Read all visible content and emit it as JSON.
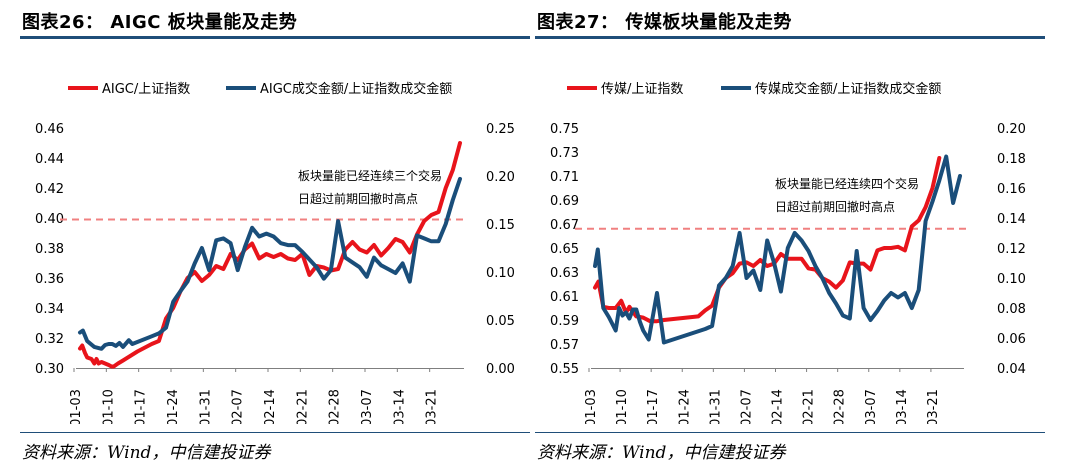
{
  "colors": {
    "red": "#e8141b",
    "navy": "#1a4e7a",
    "dash": "#f08080",
    "rule": "#1f4e79"
  },
  "charts": [
    {
      "title": "图表26： AIGC 板块量能及走势",
      "source": "资料来源：Wind，中信建投证券",
      "chart_data": {
        "type": "line",
        "legend": [
          "AIGC/上证指数",
          "AIGC成交金额/上证指数成交金额"
        ],
        "x_ticks": [
          "01-03",
          "01-10",
          "01-17",
          "01-24",
          "01-31",
          "02-07",
          "02-14",
          "02-21",
          "02-28",
          "03-07",
          "03-14",
          "03-21"
        ],
        "y_left_ticks": [
          "0.46",
          "0.44",
          "0.42",
          "0.40",
          "0.38",
          "0.36",
          "0.34",
          "0.32",
          "0.30"
        ],
        "y_left_range": [
          0.3,
          0.46
        ],
        "y_right_ticks": [
          "0.25",
          "0.20",
          "0.15",
          "0.10",
          "0.05",
          "0.00"
        ],
        "y_right_range": [
          0.0,
          0.25
        ],
        "reference_line_left": 0.399,
        "annotation": [
          "板块量能已经连续三个交易",
          "日超过前期回撤时高点"
        ],
        "series": [
          {
            "name": "AIGC/上证指数",
            "axis": "left",
            "color": "red",
            "points": [
              [
                0,
                0.313
              ],
              [
                0.3,
                0.315
              ],
              [
                0.7,
                0.31
              ],
              [
                1,
                0.307
              ],
              [
                1.6,
                0.306
              ],
              [
                2,
                0.303
              ],
              [
                2.3,
                0.306
              ],
              [
                2.6,
                0.303
              ],
              [
                3,
                0.304
              ],
              [
                3.5,
                0.303
              ],
              [
                4,
                0.302
              ],
              [
                4.4,
                0.301
              ],
              [
                4.7,
                0.301
              ],
              [
                5.3,
                0.303
              ],
              [
                6,
                0.305
              ],
              [
                8,
                0.311
              ],
              [
                10,
                0.316
              ],
              [
                11,
                0.318
              ],
              [
                12,
                0.333
              ],
              [
                13,
                0.34
              ],
              [
                14,
                0.351
              ],
              [
                15,
                0.36
              ],
              [
                16,
                0.364
              ],
              [
                17,
                0.358
              ],
              [
                18,
                0.362
              ],
              [
                19,
                0.368
              ],
              [
                20,
                0.366
              ],
              [
                21,
                0.376
              ],
              [
                22,
                0.372
              ],
              [
                23,
                0.379
              ],
              [
                24,
                0.383
              ],
              [
                25,
                0.373
              ],
              [
                26,
                0.376
              ],
              [
                27,
                0.374
              ],
              [
                28,
                0.376
              ],
              [
                29,
                0.373
              ],
              [
                30,
                0.372
              ],
              [
                31,
                0.376
              ],
              [
                32,
                0.362
              ],
              [
                33,
                0.368
              ],
              [
                34,
                0.367
              ],
              [
                35,
                0.365
              ],
              [
                36,
                0.366
              ],
              [
                37,
                0.379
              ],
              [
                38,
                0.384
              ],
              [
                39,
                0.379
              ],
              [
                40,
                0.377
              ],
              [
                41,
                0.382
              ],
              [
                42,
                0.375
              ],
              [
                43,
                0.38
              ],
              [
                44,
                0.386
              ],
              [
                45,
                0.384
              ],
              [
                46,
                0.377
              ],
              [
                47,
                0.389
              ],
              [
                48,
                0.398
              ],
              [
                49,
                0.402
              ],
              [
                50,
                0.404
              ],
              [
                51,
                0.42
              ],
              [
                52,
                0.432
              ],
              [
                53,
                0.45
              ]
            ]
          },
          {
            "name": "AIGC成交金额/上证指数成交金额",
            "axis": "right",
            "color": "navy",
            "points": [
              [
                0,
                0.037
              ],
              [
                0.4,
                0.039
              ],
              [
                1,
                0.028
              ],
              [
                2,
                0.022
              ],
              [
                3,
                0.02
              ],
              [
                3.5,
                0.024
              ],
              [
                4,
                0.025
              ],
              [
                4.5,
                0.025
              ],
              [
                5,
                0.023
              ],
              [
                5.5,
                0.026
              ],
              [
                6,
                0.022
              ],
              [
                6.8,
                0.029
              ],
              [
                7.3,
                0.025
              ],
              [
                10,
                0.033
              ],
              [
                11,
                0.036
              ],
              [
                12,
                0.042
              ],
              [
                13,
                0.069
              ],
              [
                14,
                0.08
              ],
              [
                15,
                0.09
              ],
              [
                16,
                0.109
              ],
              [
                17,
                0.125
              ],
              [
                18,
                0.102
              ],
              [
                19,
                0.133
              ],
              [
                20,
                0.135
              ],
              [
                21,
                0.13
              ],
              [
                22,
                0.102
              ],
              [
                23,
                0.126
              ],
              [
                24,
                0.146
              ],
              [
                25,
                0.137
              ],
              [
                26,
                0.14
              ],
              [
                27,
                0.137
              ],
              [
                28,
                0.13
              ],
              [
                29,
                0.128
              ],
              [
                30,
                0.128
              ],
              [
                31,
                0.121
              ],
              [
                32,
                0.113
              ],
              [
                33,
                0.105
              ],
              [
                34,
                0.093
              ],
              [
                35,
                0.102
              ],
              [
                36,
                0.153
              ],
              [
                37,
                0.115
              ],
              [
                38,
                0.11
              ],
              [
                39,
                0.105
              ],
              [
                40,
                0.095
              ],
              [
                41,
                0.115
              ],
              [
                42,
                0.107
              ],
              [
                43,
                0.103
              ],
              [
                44,
                0.099
              ],
              [
                45,
                0.109
              ],
              [
                46,
                0.09
              ],
              [
                47,
                0.138
              ],
              [
                48,
                0.135
              ],
              [
                49,
                0.132
              ],
              [
                50,
                0.132
              ],
              [
                51,
                0.15
              ],
              [
                52,
                0.175
              ],
              [
                53,
                0.197
              ]
            ]
          }
        ]
      }
    },
    {
      "title": "图表27： 传媒板块量能及走势",
      "source": "资料来源：Wind，中信建投证券",
      "chart_data": {
        "type": "line",
        "legend": [
          "传媒/上证指数",
          "传媒成交金额/上证指数成交金额"
        ],
        "x_ticks": [
          "01-03",
          "01-10",
          "01-17",
          "01-24",
          "01-31",
          "02-07",
          "02-14",
          "02-21",
          "02-28",
          "03-07",
          "03-14",
          "03-21"
        ],
        "y_left_ticks": [
          "0.75",
          "0.73",
          "0.71",
          "0.69",
          "0.67",
          "0.65",
          "0.63",
          "0.61",
          "0.59",
          "0.57",
          "0.55"
        ],
        "y_left_range": [
          0.55,
          0.75
        ],
        "y_right_ticks": [
          "0.20",
          "0.18",
          "0.16",
          "0.14",
          "0.12",
          "0.10",
          "0.08",
          "0.06",
          "0.04"
        ],
        "y_right_range": [
          0.04,
          0.2
        ],
        "reference_line_left": 0.666,
        "annotation": [
          "板块量能已经连续四个交易",
          "日超过前期回撤时高点"
        ],
        "series": [
          {
            "name": "传媒/上证指数",
            "axis": "left",
            "color": "red",
            "points": [
              [
                0,
                0.617
              ],
              [
                0.5,
                0.622
              ],
              [
                1.2,
                0.601
              ],
              [
                2,
                0.6
              ],
              [
                3,
                0.6
              ],
              [
                3.8,
                0.606
              ],
              [
                4.5,
                0.596
              ],
              [
                5,
                0.601
              ],
              [
                6,
                0.593
              ],
              [
                7,
                0.592
              ],
              [
                8,
                0.589
              ],
              [
                9,
                0.589
              ],
              [
                10,
                0.59
              ],
              [
                15,
                0.593
              ],
              [
                16,
                0.598
              ],
              [
                17,
                0.602
              ],
              [
                18,
                0.617
              ],
              [
                19,
                0.625
              ],
              [
                20,
                0.629
              ],
              [
                21,
                0.637
              ],
              [
                22,
                0.638
              ],
              [
                23,
                0.635
              ],
              [
                24,
                0.64
              ],
              [
                25,
                0.635
              ],
              [
                26,
                0.637
              ],
              [
                27,
                0.645
              ],
              [
                28,
                0.641
              ],
              [
                29,
                0.641
              ],
              [
                30,
                0.641
              ],
              [
                31,
                0.633
              ],
              [
                32,
                0.632
              ],
              [
                33,
                0.625
              ],
              [
                34,
                0.622
              ],
              [
                35,
                0.617
              ],
              [
                36,
                0.623
              ],
              [
                37,
                0.638
              ],
              [
                38,
                0.637
              ],
              [
                39,
                0.637
              ],
              [
                40,
                0.632
              ],
              [
                41,
                0.648
              ],
              [
                42,
                0.65
              ],
              [
                43,
                0.65
              ],
              [
                44,
                0.651
              ],
              [
                45,
                0.648
              ],
              [
                46,
                0.668
              ],
              [
                47,
                0.673
              ],
              [
                48,
                0.684
              ],
              [
                49,
                0.7
              ],
              [
                50,
                0.725
              ]
            ]
          },
          {
            "name": "传媒成交金额/上证指数成交金额",
            "axis": "right",
            "color": "navy",
            "points": [
              [
                0,
                0.108
              ],
              [
                0.4,
                0.119
              ],
              [
                1.2,
                0.08
              ],
              [
                2,
                0.074
              ],
              [
                3,
                0.065
              ],
              [
                3.5,
                0.08
              ],
              [
                4,
                0.075
              ],
              [
                4.5,
                0.077
              ],
              [
                5,
                0.073
              ],
              [
                5.5,
                0.079
              ],
              [
                6,
                0.079
              ],
              [
                6.5,
                0.071
              ],
              [
                7,
                0.065
              ],
              [
                7.8,
                0.059
              ],
              [
                9,
                0.09
              ],
              [
                10,
                0.057
              ],
              [
                16,
                0.066
              ],
              [
                17,
                0.068
              ],
              [
                18,
                0.095
              ],
              [
                19,
                0.1
              ],
              [
                20,
                0.108
              ],
              [
                21,
                0.13
              ],
              [
                22,
                0.1
              ],
              [
                23,
                0.105
              ],
              [
                24,
                0.092
              ],
              [
                25,
                0.125
              ],
              [
                26,
                0.11
              ],
              [
                27,
                0.091
              ],
              [
                28,
                0.12
              ],
              [
                29,
                0.13
              ],
              [
                30,
                0.125
              ],
              [
                31,
                0.118
              ],
              [
                32,
                0.108
              ],
              [
                33,
                0.1
              ],
              [
                34,
                0.09
              ],
              [
                35,
                0.083
              ],
              [
                36,
                0.075
              ],
              [
                37,
                0.073
              ],
              [
                38,
                0.118
              ],
              [
                39,
                0.08
              ],
              [
                40,
                0.072
              ],
              [
                41,
                0.078
              ],
              [
                42,
                0.085
              ],
              [
                43,
                0.09
              ],
              [
                44,
                0.087
              ],
              [
                45,
                0.09
              ],
              [
                46,
                0.08
              ],
              [
                47,
                0.092
              ],
              [
                48,
                0.138
              ],
              [
                49,
                0.151
              ],
              [
                50,
                0.165
              ],
              [
                51,
                0.181
              ],
              [
                52,
                0.15
              ],
              [
                53,
                0.168
              ]
            ]
          }
        ]
      }
    }
  ]
}
